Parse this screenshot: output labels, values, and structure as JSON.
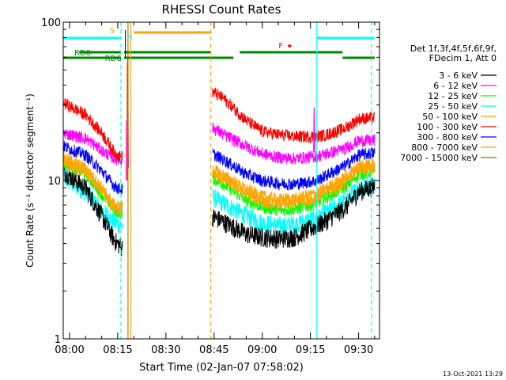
{
  "chart_data": {
    "type": "line",
    "title": "RHESSI Count Rates",
    "xlabel": "Start Time (02-Jan-07 07:58:02)",
    "ylabel": "Count Rate (s⁻¹ detector segment⁻¹)",
    "yscale": "log",
    "ylim": [
      1,
      100
    ],
    "y_ticks": [
      {
        "v": 1,
        "label": "1"
      },
      {
        "v": 10,
        "label": "10"
      },
      {
        "v": 100,
        "label": "100"
      }
    ],
    "xlim": [
      "07:58",
      "09:35"
    ],
    "x_ticks": [
      "08:00",
      "08:15",
      "08:30",
      "08:45",
      "09:00",
      "09:15",
      "09:30"
    ],
    "grid": false,
    "legend_position": "right",
    "legend_header": [
      "Det 1f,3f,4f,5f,6f,9f,",
      "FDecim 1, Att 0"
    ],
    "series": [
      {
        "name": "3 - 6 keV",
        "color": "#000000",
        "points": [
          [
            "07:58",
            11.5
          ],
          [
            "08:05",
            9.0
          ],
          [
            "08:10",
            6.0
          ],
          [
            "08:14",
            4.2
          ],
          [
            "08:16",
            3.8
          ],
          [
            "08:44",
            6.0
          ],
          [
            "08:48",
            5.5
          ],
          [
            "08:55",
            4.6
          ],
          [
            "09:00",
            4.4
          ],
          [
            "09:05",
            4.3
          ],
          [
            "09:10",
            4.4
          ],
          [
            "09:17",
            5.2
          ],
          [
            "09:20",
            5.6
          ],
          [
            "09:26",
            6.8
          ],
          [
            "09:30",
            8.5
          ],
          [
            "09:35",
            9.2
          ]
        ]
      },
      {
        "name": "6 - 12 keV",
        "color": "#ff00ff",
        "points": [
          [
            "07:58",
            20.0
          ],
          [
            "08:05",
            18.5
          ],
          [
            "08:10",
            15.5
          ],
          [
            "08:14",
            13.8
          ],
          [
            "08:16",
            13.5
          ],
          [
            "08:44",
            22.0
          ],
          [
            "08:48",
            19.5
          ],
          [
            "08:55",
            16.5
          ],
          [
            "09:00",
            14.8
          ],
          [
            "09:05",
            14.0
          ],
          [
            "09:10",
            13.8
          ],
          [
            "09:17",
            14.2
          ],
          [
            "09:20",
            14.8
          ],
          [
            "09:26",
            16.0
          ],
          [
            "09:30",
            17.8
          ],
          [
            "09:35",
            18.0
          ]
        ]
      },
      {
        "name": "12 - 25 keV",
        "color": "#00ff00",
        "points": [
          [
            "07:58",
            13.0
          ],
          [
            "08:05",
            11.0
          ],
          [
            "08:10",
            8.2
          ],
          [
            "08:14",
            6.5
          ],
          [
            "08:16",
            6.2
          ],
          [
            "08:44",
            10.5
          ],
          [
            "08:48",
            9.5
          ],
          [
            "08:55",
            7.5
          ],
          [
            "09:00",
            6.8
          ],
          [
            "09:05",
            6.5
          ],
          [
            "09:10",
            6.6
          ],
          [
            "09:17",
            7.2
          ],
          [
            "09:20",
            7.8
          ],
          [
            "09:26",
            9.2
          ],
          [
            "09:30",
            11.0
          ],
          [
            "09:35",
            11.5
          ]
        ]
      },
      {
        "name": "25 - 50 keV",
        "color": "#00ffff",
        "points": [
          [
            "07:58",
            10.5
          ],
          [
            "08:05",
            8.5
          ],
          [
            "08:10",
            6.5
          ],
          [
            "08:14",
            5.5
          ],
          [
            "08:16",
            5.2
          ],
          [
            "08:44",
            8.0
          ],
          [
            "08:48",
            7.2
          ],
          [
            "08:55",
            6.0
          ],
          [
            "09:00",
            5.4
          ],
          [
            "09:05",
            5.2
          ],
          [
            "09:10",
            5.3
          ],
          [
            "09:17",
            5.8
          ],
          [
            "09:20",
            6.3
          ],
          [
            "09:26",
            7.5
          ],
          [
            "09:30",
            9.2
          ],
          [
            "09:35",
            9.5
          ]
        ]
      },
      {
        "name": "50 - 100 keV",
        "color": "#ffa500",
        "points": [
          [
            "07:58",
            14.0
          ],
          [
            "08:05",
            12.0
          ],
          [
            "08:10",
            9.0
          ],
          [
            "08:14",
            7.0
          ],
          [
            "08:16",
            6.8
          ],
          [
            "08:44",
            12.0
          ],
          [
            "08:48",
            10.8
          ],
          [
            "08:55",
            8.8
          ],
          [
            "09:00",
            8.0
          ],
          [
            "09:05",
            7.6
          ],
          [
            "09:10",
            7.7
          ],
          [
            "09:17",
            8.3
          ],
          [
            "09:20",
            9.0
          ],
          [
            "09:26",
            10.5
          ],
          [
            "09:30",
            12.5
          ],
          [
            "09:35",
            13.0
          ]
        ]
      },
      {
        "name": "100 - 300 keV",
        "color": "#ff0000",
        "points": [
          [
            "07:58",
            31.0
          ],
          [
            "08:05",
            26.0
          ],
          [
            "08:10",
            20.0
          ],
          [
            "08:14",
            15.0
          ],
          [
            "08:16",
            14.0
          ],
          [
            "08:44",
            37.0
          ],
          [
            "08:48",
            33.0
          ],
          [
            "08:55",
            24.0
          ],
          [
            "09:00",
            20.5
          ],
          [
            "09:05",
            19.5
          ],
          [
            "09:10",
            19.0
          ],
          [
            "09:17",
            19.0
          ],
          [
            "09:20",
            19.5
          ],
          [
            "09:26",
            21.5
          ],
          [
            "09:30",
            24.5
          ],
          [
            "09:35",
            25.0
          ]
        ]
      },
      {
        "name": "300 - 800 keV",
        "color": "#0000ff",
        "points": [
          [
            "07:58",
            16.5
          ],
          [
            "08:05",
            14.5
          ],
          [
            "08:10",
            11.5
          ],
          [
            "08:14",
            9.2
          ],
          [
            "08:16",
            8.8
          ],
          [
            "08:44",
            15.0
          ],
          [
            "08:48",
            13.5
          ],
          [
            "08:55",
            11.0
          ],
          [
            "09:00",
            10.0
          ],
          [
            "09:05",
            9.6
          ],
          [
            "09:10",
            9.5
          ],
          [
            "09:17",
            10.0
          ],
          [
            "09:20",
            10.8
          ],
          [
            "09:26",
            12.5
          ],
          [
            "09:30",
            14.5
          ],
          [
            "09:35",
            15.0
          ]
        ]
      },
      {
        "name": "800 - 7000 keV",
        "color": "#ffa500",
        "points": [
          [
            "07:58",
            13.3
          ],
          [
            "08:05",
            11.3
          ],
          [
            "08:10",
            8.5
          ],
          [
            "08:14",
            6.7
          ],
          [
            "08:16",
            6.5
          ],
          [
            "08:44",
            11.3
          ],
          [
            "08:48",
            10.2
          ],
          [
            "08:55",
            8.2
          ],
          [
            "09:00",
            7.4
          ],
          [
            "09:05",
            7.1
          ],
          [
            "09:10",
            7.2
          ],
          [
            "09:17",
            7.8
          ],
          [
            "09:20",
            8.4
          ],
          [
            "09:26",
            9.8
          ],
          [
            "09:30",
            11.8
          ],
          [
            "09:35",
            12.2
          ]
        ]
      },
      {
        "name": "7000 - 15000 keV",
        "color": "#996600",
        "points": []
      }
    ],
    "annotations": [
      {
        "label": "S",
        "color": "#ffa500"
      },
      {
        "label": "N",
        "color": "#00ffff"
      },
      {
        "label": "F",
        "color": "#ff0000"
      },
      {
        "label": "RD0",
        "color": "#008800"
      },
      {
        "label": "RD6",
        "color": "#008800"
      }
    ],
    "flag_bars": [
      {
        "color": "#00ffff",
        "x": [
          [
            "07:58",
            "08:16"
          ],
          [
            "09:17",
            "09:35"
          ]
        ]
      },
      {
        "color": "#ffa500",
        "x": [
          [
            "08:20",
            "08:44"
          ]
        ]
      },
      {
        "color": "#008800",
        "x": [
          [
            "08:03",
            "08:16"
          ],
          [
            "08:17",
            "08:44"
          ],
          [
            "08:53",
            "09:25"
          ]
        ]
      },
      {
        "color": "#008800",
        "x": [
          [
            "07:58",
            "08:16"
          ],
          [
            "08:17",
            "08:44"
          ],
          [
            "08:44",
            "08:51"
          ],
          [
            "09:25",
            "09:35"
          ]
        ]
      },
      {
        "color": "#ff0000",
        "x": [
          [
            "09:08",
            "09:09"
          ]
        ]
      }
    ],
    "vlines": [
      {
        "x": "08:16",
        "color": "#00ffff",
        "style": "dashed"
      },
      {
        "x": "08:19",
        "color": "#ffa500",
        "style": "solid"
      },
      {
        "x": "08:44",
        "color": "#ffa500",
        "style": "dashed"
      },
      {
        "x": "09:17",
        "color": "#00ffff",
        "style": "solid"
      },
      {
        "x": "09:34",
        "color": "#00ffff",
        "style": "dashed"
      }
    ],
    "footer_timestamp": "13-Oct-2021 13:29"
  }
}
